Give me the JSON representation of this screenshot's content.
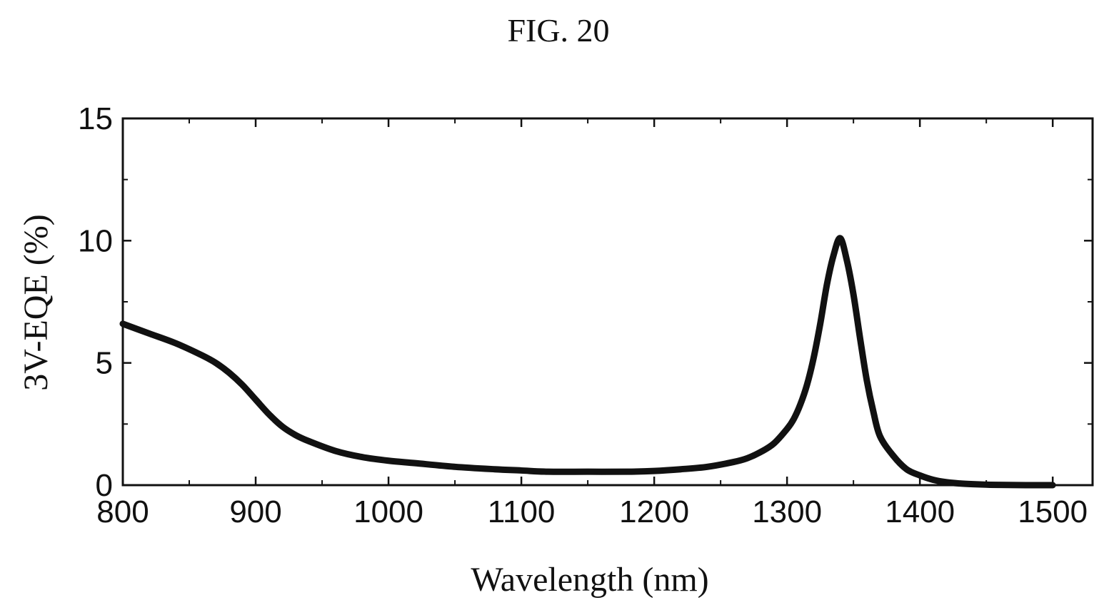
{
  "figure": {
    "title": "FIG. 20"
  },
  "chart_data": {
    "type": "line",
    "xlabel": "Wavelength (nm)",
    "ylabel": "3V-EQE (%)",
    "xlim": [
      800,
      1530
    ],
    "ylim": [
      0,
      15
    ],
    "x_ticks": [
      800,
      900,
      1000,
      1100,
      1200,
      1300,
      1400,
      1500
    ],
    "x_tick_labels": [
      "800",
      "900",
      "1000",
      "1100",
      "1200",
      "1300",
      "1400",
      "1500"
    ],
    "y_ticks": [
      0,
      5,
      10,
      15
    ],
    "y_tick_labels": [
      "0",
      "5",
      "10",
      "15"
    ],
    "grid": false,
    "legend": "none",
    "line_color": "#111111",
    "series": [
      {
        "x": [
          800,
          820,
          840,
          860,
          870,
          880,
          890,
          900,
          910,
          920,
          930,
          940,
          960,
          980,
          1000,
          1020,
          1050,
          1080,
          1100,
          1120,
          1150,
          1180,
          1200,
          1220,
          1240,
          1260,
          1270,
          1280,
          1290,
          1300,
          1305,
          1310,
          1315,
          1320,
          1325,
          1330,
          1335,
          1340,
          1345,
          1350,
          1355,
          1360,
          1365,
          1370,
          1380,
          1390,
          1400,
          1410,
          1420,
          1430,
          1440,
          1450,
          1460,
          1480,
          1500
        ],
        "y": [
          6.6,
          6.2,
          5.8,
          5.3,
          5.0,
          4.6,
          4.1,
          3.5,
          2.9,
          2.4,
          2.05,
          1.8,
          1.4,
          1.15,
          1.0,
          0.9,
          0.75,
          0.65,
          0.6,
          0.55,
          0.55,
          0.55,
          0.58,
          0.65,
          0.75,
          0.95,
          1.1,
          1.35,
          1.7,
          2.3,
          2.7,
          3.3,
          4.1,
          5.2,
          6.6,
          8.2,
          9.4,
          10.1,
          9.2,
          7.8,
          6.0,
          4.3,
          3.0,
          2.0,
          1.2,
          0.65,
          0.4,
          0.22,
          0.12,
          0.07,
          0.04,
          0.02,
          0.01,
          0.0,
          0.0
        ]
      }
    ]
  }
}
